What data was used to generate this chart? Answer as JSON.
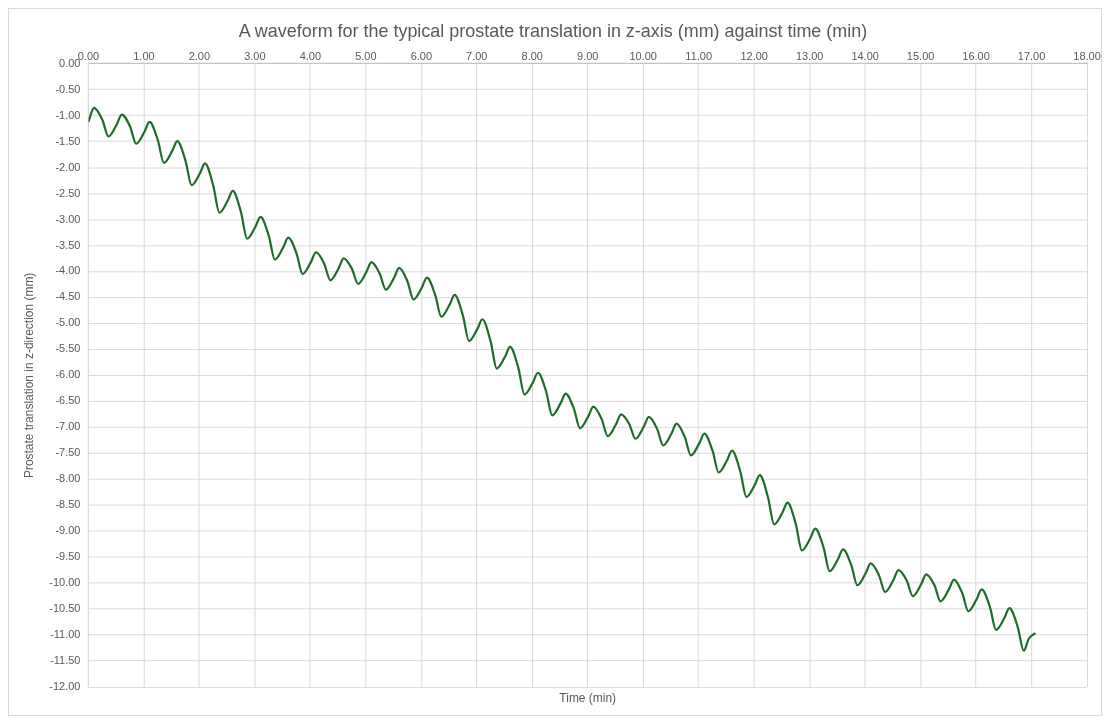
{
  "chart_data": {
    "type": "line",
    "title": "A waveform for the typical prostate translation in z-axis (mm) against time (min)",
    "xlabel": "Time (min)",
    "ylabel": "Prostate translation in z-direction (mm)",
    "x": [
      0,
      0.1,
      0.25,
      0.36,
      0.51,
      0.6,
      0.75,
      0.86,
      1.01,
      1.1,
      1.25,
      1.36,
      1.51,
      1.6,
      1.75,
      1.86,
      2.01,
      2.1,
      2.25,
      2.36,
      2.51,
      2.6,
      2.75,
      2.86,
      3.01,
      3.1,
      3.25,
      3.36,
      3.51,
      3.6,
      3.75,
      3.86,
      4.01,
      4.1,
      4.25,
      4.36,
      4.51,
      4.6,
      4.75,
      4.86,
      5.01,
      5.1,
      5.25,
      5.36,
      5.51,
      5.6,
      5.75,
      5.86,
      6.01,
      6.1,
      6.25,
      6.36,
      6.51,
      6.6,
      6.75,
      6.86,
      7.01,
      7.1,
      7.25,
      7.36,
      7.51,
      7.6,
      7.75,
      7.86,
      8.01,
      8.1,
      8.25,
      8.36,
      8.51,
      8.6,
      8.75,
      8.86,
      9.01,
      9.1,
      9.25,
      9.36,
      9.51,
      9.6,
      9.75,
      9.86,
      10.01,
      10.1,
      10.25,
      10.36,
      10.51,
      10.6,
      10.75,
      10.86,
      11.01,
      11.1,
      11.25,
      11.36,
      11.51,
      11.6,
      11.75,
      11.86,
      12.01,
      12.1,
      12.25,
      12.36,
      12.51,
      12.6,
      12.75,
      12.86,
      13.01,
      13.1,
      13.25,
      13.36,
      13.51,
      13.6,
      13.75,
      13.86,
      14.01,
      14.1,
      14.25,
      14.36,
      14.51,
      14.6,
      14.75,
      14.86,
      15.01,
      15.1,
      15.25,
      15.36,
      15.51,
      15.6,
      15.75,
      15.86,
      16.01,
      16.1,
      16.25,
      16.36,
      16.51,
      16.6,
      16.75,
      16.86,
      16.95,
      17.07
    ],
    "series": [
      {
        "color": "#1e6b2a",
        "values": [
          -1.12,
          -0.85,
          -1.08,
          -1.4,
          -1.17,
          -0.98,
          -1.21,
          -1.54,
          -1.31,
          -1.12,
          -1.47,
          -1.91,
          -1.68,
          -1.49,
          -1.87,
          -2.34,
          -2.11,
          -1.92,
          -2.35,
          -2.87,
          -2.64,
          -2.45,
          -2.86,
          -3.37,
          -3.14,
          -2.95,
          -3.31,
          -3.77,
          -3.54,
          -3.35,
          -3.65,
          -4.05,
          -3.82,
          -3.63,
          -3.85,
          -4.17,
          -3.94,
          -3.75,
          -3.95,
          -4.24,
          -4.01,
          -3.82,
          -4.04,
          -4.35,
          -4.12,
          -3.93,
          -4.19,
          -4.54,
          -4.31,
          -4.12,
          -4.45,
          -4.87,
          -4.64,
          -4.45,
          -4.85,
          -5.34,
          -5.11,
          -4.92,
          -5.35,
          -5.87,
          -5.64,
          -5.45,
          -5.86,
          -6.37,
          -6.14,
          -5.95,
          -6.31,
          -6.77,
          -6.54,
          -6.35,
          -6.64,
          -7.02,
          -6.79,
          -6.6,
          -6.84,
          -7.17,
          -6.94,
          -6.75,
          -6.94,
          -7.22,
          -6.99,
          -6.8,
          -7.03,
          -7.35,
          -7.12,
          -6.93,
          -7.19,
          -7.54,
          -7.31,
          -7.12,
          -7.45,
          -7.87,
          -7.64,
          -7.45,
          -7.85,
          -8.34,
          -8.11,
          -7.92,
          -8.35,
          -8.87,
          -8.64,
          -8.45,
          -8.86,
          -9.37,
          -9.14,
          -8.95,
          -9.31,
          -9.77,
          -9.54,
          -9.35,
          -9.65,
          -10.04,
          -9.81,
          -9.62,
          -9.85,
          -10.17,
          -9.94,
          -9.75,
          -9.95,
          -10.25,
          -10.02,
          -9.83,
          -10.04,
          -10.35,
          -10.12,
          -9.93,
          -10.19,
          -10.54,
          -10.31,
          -10.12,
          -10.46,
          -10.9,
          -10.67,
          -10.48,
          -10.84,
          -11.3,
          -11.07,
          -10.96
        ]
      }
    ],
    "xlim": [
      0,
      18
    ],
    "xticks": [
      {
        "value": 0,
        "label": "0.00"
      },
      {
        "value": 1,
        "label": "1.00"
      },
      {
        "value": 2,
        "label": "2.00"
      },
      {
        "value": 3,
        "label": "3.00"
      },
      {
        "value": 4,
        "label": "4.00"
      },
      {
        "value": 5,
        "label": "5.00"
      },
      {
        "value": 6,
        "label": "6.00"
      },
      {
        "value": 7,
        "label": "7.00"
      },
      {
        "value": 8,
        "label": "8.00"
      },
      {
        "value": 9,
        "label": "9.00"
      },
      {
        "value": 10,
        "label": "10.00"
      },
      {
        "value": 11,
        "label": "11.00"
      },
      {
        "value": 12,
        "label": "12.00"
      },
      {
        "value": 13,
        "label": "13.00"
      },
      {
        "value": 14,
        "label": "14.00"
      },
      {
        "value": 15,
        "label": "15.00"
      },
      {
        "value": 16,
        "label": "16.00"
      },
      {
        "value": 17,
        "label": "17.00"
      },
      {
        "value": 18,
        "label": "18.00"
      }
    ],
    "ylim": [
      -12,
      0
    ],
    "yticks": [
      {
        "value": 0,
        "label": "0.00"
      },
      {
        "value": -0.5,
        "label": "-0.50"
      },
      {
        "value": -1,
        "label": "-1.00"
      },
      {
        "value": -1.5,
        "label": "-1.50"
      },
      {
        "value": -2,
        "label": "-2.00"
      },
      {
        "value": -2.5,
        "label": "-2.50"
      },
      {
        "value": -3,
        "label": "-3.00"
      },
      {
        "value": -3.5,
        "label": "-3.50"
      },
      {
        "value": -4,
        "label": "-4.00"
      },
      {
        "value": -4.5,
        "label": "-4.50"
      },
      {
        "value": -5,
        "label": "-5.00"
      },
      {
        "value": -5.5,
        "label": "-5.50"
      },
      {
        "value": -6,
        "label": "-6.00"
      },
      {
        "value": -6.5,
        "label": "-6.50"
      },
      {
        "value": -7,
        "label": "-7.00"
      },
      {
        "value": -7.5,
        "label": "-7.50"
      },
      {
        "value": -8,
        "label": "-8.00"
      },
      {
        "value": -8.5,
        "label": "-8.50"
      },
      {
        "value": -9,
        "label": "-9.00"
      },
      {
        "value": -9.5,
        "label": "-9.50"
      },
      {
        "value": -10,
        "label": "-10.00"
      },
      {
        "value": -10.5,
        "label": "-10.50"
      },
      {
        "value": -11,
        "label": "-11.00"
      },
      {
        "value": -11.5,
        "label": "-11.50"
      },
      {
        "value": -12,
        "label": "-12.00"
      }
    ],
    "grid": true,
    "marker": "none",
    "line_style": "solid",
    "legend": false
  }
}
